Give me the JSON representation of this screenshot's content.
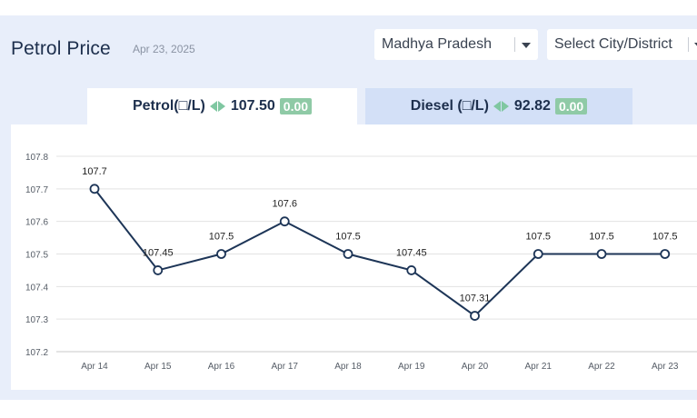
{
  "header": {
    "title": "Petrol Price",
    "date": "Apr 23, 2025",
    "state_select": "Madhya Pradesh",
    "city_select": "Select City/District"
  },
  "tabs": {
    "petrol": {
      "label": "Petrol(□/L)",
      "price": "107.50",
      "change": "0.00"
    },
    "diesel": {
      "label": "Diesel (□/L)",
      "price": "92.82",
      "change": "0.00"
    }
  },
  "colors": {
    "line": "#1d3557",
    "active_tab": "#ffffff",
    "inactive_tab": "#d3e0f7",
    "badge": "#8fcaa6",
    "arrow": "#7fc7a1"
  },
  "chart_data": {
    "type": "line",
    "title": "",
    "xlabel": "",
    "ylabel": "",
    "categories": [
      "Apr 14",
      "Apr 15",
      "Apr 16",
      "Apr 17",
      "Apr 18",
      "Apr 19",
      "Apr 20",
      "Apr 21",
      "Apr 22",
      "Apr 23"
    ],
    "series": [
      {
        "values": [
          107.7,
          107.45,
          107.5,
          107.6,
          107.5,
          107.45,
          107.31,
          107.5,
          107.5,
          107.5
        ]
      }
    ],
    "data_labels": [
      "107.7",
      "107.45",
      "107.5",
      "107.6",
      "107.5",
      "107.45",
      "107.31",
      "107.5",
      "107.5",
      "107.5"
    ],
    "y_ticks": [
      "107.8",
      "107.7",
      "107.6",
      "107.5",
      "107.4",
      "107.3",
      "107.2"
    ],
    "ylim": [
      107.2,
      107.8
    ],
    "grid": true,
    "legend": "none"
  }
}
